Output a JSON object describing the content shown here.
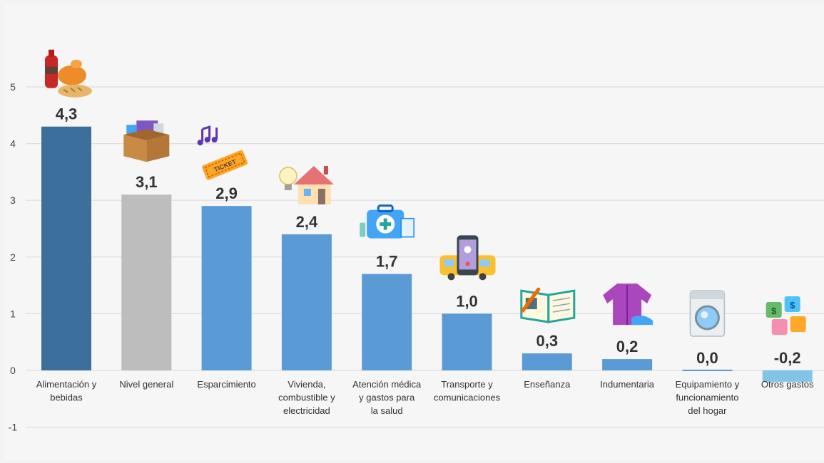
{
  "chart_data": {
    "type": "bar",
    "categories": [
      "Alimentación y bebidas",
      "Nivel general",
      "Esparcimiento",
      "Vivienda, combustible y electricidad",
      "Atención médica y gastos para la salud",
      "Transporte y comunicaciones",
      "Enseñanza",
      "Indumentaria",
      "Equipamiento y funcionamiento del hogar",
      "Otros gastos"
    ],
    "category_lines": [
      [
        "Alimentación y",
        "bebidas"
      ],
      [
        "Nivel general"
      ],
      [
        "Esparcimiento"
      ],
      [
        "Vivienda,",
        "combustible y",
        "electricidad"
      ],
      [
        "Atención médica",
        "y gastos para",
        "la salud"
      ],
      [
        "Transporte y",
        "comunicaciones"
      ],
      [
        "Enseñanza"
      ],
      [
        "Indumentaria"
      ],
      [
        "Equipamiento y",
        "funcionamiento",
        "del hogar"
      ],
      [
        "Otros gastos"
      ]
    ],
    "values": [
      4.3,
      3.1,
      2.9,
      2.4,
      1.7,
      1.0,
      0.3,
      0.2,
      0.0,
      -0.2
    ],
    "value_labels": [
      "4,3",
      "3,1",
      "2,9",
      "2,4",
      "1,7",
      "1,0",
      "0,3",
      "0,2",
      "0,0",
      "-0,2"
    ],
    "bar_colors": [
      "#3d6f9c",
      "#bdbdbd",
      "#5b9bd5",
      "#5b9bd5",
      "#5b9bd5",
      "#5b9bd5",
      "#5b9bd5",
      "#5b9bd5",
      "#5b9bd5",
      "#82c4e6"
    ],
    "icons": [
      "food-drinks-icon",
      "box-icon",
      "music-ticket-icon",
      "house-icon",
      "medical-kit-icon",
      "bus-phone-icon",
      "book-icon",
      "clothes-icon",
      "washing-machine-icon",
      "money-puzzle-icon"
    ],
    "yticks": [
      5,
      4,
      3,
      2,
      1,
      0,
      -1
    ],
    "ylim": [
      -1,
      5
    ],
    "grid": true,
    "title": "",
    "xlabel": "",
    "ylabel": ""
  }
}
